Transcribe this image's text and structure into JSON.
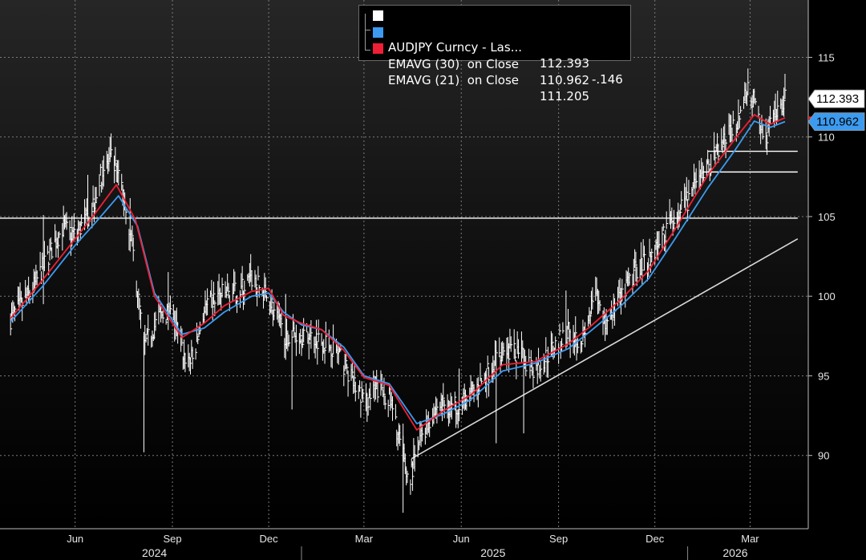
{
  "legend": {
    "items": [
      {
        "name": "AUDJPY Curncy - Las...",
        "value": "112.393",
        "change": "-.146",
        "color": "#ffffff"
      },
      {
        "name": "EMAVG (30)  on Close",
        "value": "110.962",
        "change": "",
        "color": "#3c9bf0"
      },
      {
        "name": "EMAVG (21)  on Close",
        "value": "111.205",
        "change": "",
        "color": "#ef1f35"
      }
    ]
  },
  "flags": {
    "last": "112.393",
    "ema30": "110.962"
  },
  "chart_data": {
    "type": "bar",
    "title": "",
    "xlabel": "",
    "ylabel": "",
    "ylim": [
      85.4,
      118.6
    ],
    "yticks": [
      90,
      95,
      100,
      105,
      110,
      115
    ],
    "month_ticks": [
      {
        "label": "Jun",
        "date": "2024-06-01"
      },
      {
        "label": "Sep",
        "date": "2024-09-01"
      },
      {
        "label": "Dec",
        "date": "2024-12-01"
      },
      {
        "label": "Mar",
        "date": "2025-03-01"
      },
      {
        "label": "Jun",
        "date": "2025-06-01"
      },
      {
        "label": "Sep",
        "date": "2025-09-01"
      },
      {
        "label": "Dec",
        "date": "2025-12-01"
      },
      {
        "label": "Mar",
        "date": "2026-03-01"
      }
    ],
    "years": [
      {
        "label": "2024",
        "date": "2024-08-15"
      },
      {
        "label": "2025",
        "date": "2025-07-01"
      },
      {
        "label": "2026",
        "date": "2026-02-15"
      }
    ],
    "year_dividers": [
      "2025-01-01",
      "2026-01-01"
    ],
    "grid": true,
    "series": [
      {
        "name": "AUDJPY Curncy - Las...",
        "color": "#ffffff",
        "style": "hlc-bars",
        "points": [
          [
            "2024-04-01",
            98.6
          ],
          [
            "2024-04-20",
            100.2
          ],
          [
            "2024-05-05",
            102.3
          ],
          [
            "2024-05-20",
            104.3
          ],
          [
            "2024-06-01",
            103.8
          ],
          [
            "2024-06-15",
            105.2
          ],
          [
            "2024-06-27",
            107.9
          ],
          [
            "2024-07-05",
            108.6
          ],
          [
            "2024-07-15",
            106.9
          ],
          [
            "2024-07-25",
            103.2
          ],
          [
            "2024-08-05",
            96.8
          ],
          [
            "2024-08-20",
            98.8
          ],
          [
            "2024-09-01",
            98.9
          ],
          [
            "2024-09-12",
            96.2
          ],
          [
            "2024-09-20",
            96.0
          ],
          [
            "2024-10-01",
            99.1
          ],
          [
            "2024-10-15",
            100.1
          ],
          [
            "2024-11-01",
            100.2
          ],
          [
            "2024-11-15",
            101.1
          ],
          [
            "2024-12-01",
            99.8
          ],
          [
            "2024-12-15",
            97.6
          ],
          [
            "2025-01-01",
            97.6
          ],
          [
            "2025-01-15",
            97.4
          ],
          [
            "2025-02-01",
            96.8
          ],
          [
            "2025-02-15",
            95.1
          ],
          [
            "2025-03-01",
            93.3
          ],
          [
            "2025-03-15",
            94.2
          ],
          [
            "2025-03-25",
            93.6
          ],
          [
            "2025-04-05",
            90.5
          ],
          [
            "2025-04-12",
            88.3
          ],
          [
            "2025-04-25",
            91.4
          ],
          [
            "2025-05-10",
            93.2
          ],
          [
            "2025-05-25",
            93.1
          ],
          [
            "2025-06-10",
            93.8
          ],
          [
            "2025-06-25",
            95.1
          ],
          [
            "2025-07-10",
            96.8
          ],
          [
            "2025-07-25",
            96.3
          ],
          [
            "2025-08-10",
            95.4
          ],
          [
            "2025-08-25",
            96.6
          ],
          [
            "2025-09-10",
            97.8
          ],
          [
            "2025-09-25",
            97.2
          ],
          [
            "2025-10-05",
            100.1
          ],
          [
            "2025-10-15",
            98.4
          ],
          [
            "2025-10-30",
            99.8
          ],
          [
            "2025-11-15",
            101.9
          ],
          [
            "2025-11-30",
            102.8
          ],
          [
            "2025-12-15",
            104.6
          ],
          [
            "2025-12-30",
            105.8
          ],
          [
            "2026-01-15",
            107.6
          ],
          [
            "2026-01-30",
            109.2
          ],
          [
            "2026-02-15",
            110.8
          ],
          [
            "2026-02-28",
            113.1
          ],
          [
            "2026-03-05",
            112.0
          ],
          [
            "2026-03-15",
            110.0
          ],
          [
            "2026-03-25",
            111.3
          ],
          [
            "2026-04-03",
            112.4
          ]
        ]
      },
      {
        "name": "EMAVG (30)  on Close",
        "color": "#3c9bf0",
        "style": "line",
        "points": [
          [
            "2024-04-01",
            98.4
          ],
          [
            "2024-05-01",
            100.6
          ],
          [
            "2024-06-01",
            103.2
          ],
          [
            "2024-06-20",
            104.6
          ],
          [
            "2024-07-12",
            106.3
          ],
          [
            "2024-07-30",
            104.4
          ],
          [
            "2024-08-15",
            100.2
          ],
          [
            "2024-09-10",
            97.6
          ],
          [
            "2024-10-01",
            98.0
          ],
          [
            "2024-10-20",
            99.0
          ],
          [
            "2024-11-15",
            100.0
          ],
          [
            "2024-12-01",
            100.2
          ],
          [
            "2024-12-15",
            99.0
          ],
          [
            "2025-01-01",
            98.2
          ],
          [
            "2025-01-20",
            97.9
          ],
          [
            "2025-02-10",
            96.8
          ],
          [
            "2025-03-01",
            95.0
          ],
          [
            "2025-03-25",
            94.5
          ],
          [
            "2025-04-20",
            92.0
          ],
          [
            "2025-05-15",
            92.6
          ],
          [
            "2025-06-10",
            93.5
          ],
          [
            "2025-07-10",
            95.3
          ],
          [
            "2025-08-10",
            95.8
          ],
          [
            "2025-09-10",
            96.7
          ],
          [
            "2025-10-01",
            97.8
          ],
          [
            "2025-10-30",
            99.4
          ],
          [
            "2025-11-25",
            101.1
          ],
          [
            "2025-12-20",
            103.6
          ],
          [
            "2026-01-20",
            106.8
          ],
          [
            "2026-02-15",
            109.2
          ],
          [
            "2026-03-05",
            111.0
          ],
          [
            "2026-03-20",
            110.6
          ],
          [
            "2026-04-03",
            110.962
          ]
        ]
      },
      {
        "name": "EMAVG (21)  on Close",
        "color": "#ef1f35",
        "style": "line",
        "points": [
          [
            "2024-04-01",
            98.6
          ],
          [
            "2024-05-01",
            101.0
          ],
          [
            "2024-06-01",
            103.6
          ],
          [
            "2024-06-20",
            105.2
          ],
          [
            "2024-07-10",
            107.0
          ],
          [
            "2024-07-28",
            104.8
          ],
          [
            "2024-08-15",
            100.0
          ],
          [
            "2024-09-10",
            97.4
          ],
          [
            "2024-10-01",
            98.3
          ],
          [
            "2024-10-20",
            99.4
          ],
          [
            "2024-11-15",
            100.3
          ],
          [
            "2024-12-01",
            100.5
          ],
          [
            "2024-12-15",
            98.8
          ],
          [
            "2025-01-01",
            98.3
          ],
          [
            "2025-01-20",
            97.9
          ],
          [
            "2025-02-10",
            96.6
          ],
          [
            "2025-03-01",
            94.9
          ],
          [
            "2025-03-25",
            94.4
          ],
          [
            "2025-04-20",
            91.6
          ],
          [
            "2025-05-15",
            92.8
          ],
          [
            "2025-06-10",
            93.8
          ],
          [
            "2025-07-10",
            95.7
          ],
          [
            "2025-08-10",
            95.9
          ],
          [
            "2025-09-10",
            97.0
          ],
          [
            "2025-10-01",
            98.1
          ],
          [
            "2025-10-30",
            99.8
          ],
          [
            "2025-11-25",
            101.6
          ],
          [
            "2025-12-20",
            104.2
          ],
          [
            "2026-01-20",
            107.6
          ],
          [
            "2026-02-15",
            109.9
          ],
          [
            "2026-03-05",
            111.4
          ],
          [
            "2026-03-20",
            110.8
          ],
          [
            "2026-04-03",
            111.205
          ]
        ]
      }
    ],
    "annotations": [
      {
        "type": "trendline",
        "from": [
          "2025-04-15",
          89.8
        ],
        "to": [
          "2026-04-15",
          103.6
        ],
        "color": "#d8d8d8"
      },
      {
        "type": "hline",
        "y": 104.9,
        "from": "2024-03-15",
        "to": "2026-04-15",
        "color": "#ffffff"
      },
      {
        "type": "hline",
        "y": 109.1,
        "from": "2026-01-20",
        "to": "2026-04-15",
        "color": "#ffffff"
      },
      {
        "type": "hline",
        "y": 107.8,
        "from": "2026-01-15",
        "to": "2026-04-15",
        "color": "#ffffff"
      }
    ]
  }
}
